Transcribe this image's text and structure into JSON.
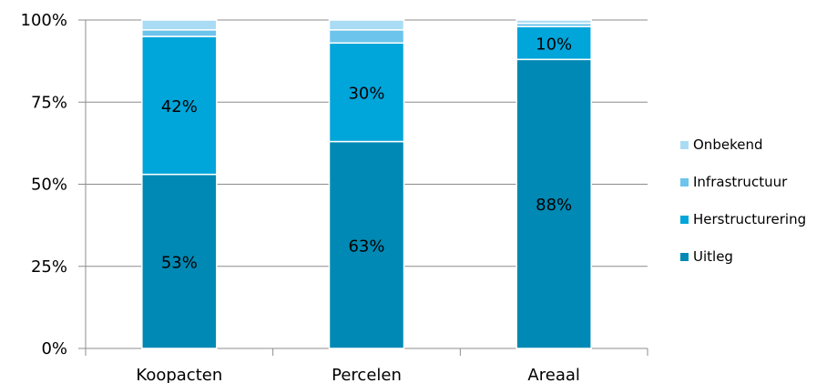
{
  "chart_data": {
    "type": "bar",
    "stacked": true,
    "categories": [
      "Koopacten",
      "Percelen",
      "Areaal"
    ],
    "series": [
      {
        "name": "Uitleg",
        "color": "#0089B4",
        "values": [
          53,
          63,
          88
        ],
        "labels": [
          "53%",
          "63%",
          "88%"
        ]
      },
      {
        "name": "Herstructurering",
        "color": "#00A5DA",
        "values": [
          42,
          30,
          10
        ],
        "labels": [
          "42%",
          "30%",
          "10%"
        ]
      },
      {
        "name": "Infrastructuur",
        "color": "#6CC4EC",
        "values": [
          2,
          4,
          1
        ],
        "labels": [
          "",
          "",
          ""
        ]
      },
      {
        "name": "Onbekend",
        "color": "#A9DCF4",
        "values": [
          3,
          3,
          1
        ],
        "labels": [
          "",
          "",
          ""
        ]
      }
    ],
    "yticks": [
      "0%",
      "25%",
      "50%",
      "75%",
      "100%"
    ],
    "ylim": [
      0,
      100
    ],
    "grid": true,
    "legend_position": "right",
    "title": "",
    "xlabel": "",
    "ylabel": ""
  }
}
